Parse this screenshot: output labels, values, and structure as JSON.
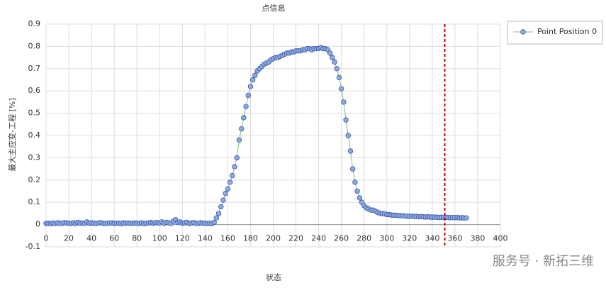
{
  "chart_data": {
    "type": "line",
    "title": "点信息",
    "x_label": "状态",
    "y_label": "最大主应变-工程 [%]",
    "x": [
      0,
      2,
      4,
      6,
      8,
      10,
      12,
      14,
      16,
      18,
      20,
      22,
      24,
      26,
      28,
      30,
      32,
      34,
      36,
      38,
      40,
      42,
      44,
      46,
      48,
      50,
      52,
      54,
      56,
      58,
      60,
      62,
      64,
      66,
      68,
      70,
      72,
      74,
      76,
      78,
      80,
      82,
      84,
      86,
      88,
      90,
      92,
      94,
      96,
      98,
      100,
      102,
      104,
      106,
      108,
      110,
      112,
      114,
      116,
      118,
      120,
      122,
      124,
      126,
      128,
      130,
      132,
      134,
      136,
      138,
      140,
      142,
      144,
      146,
      148,
      150,
      152,
      154,
      156,
      158,
      160,
      162,
      164,
      166,
      168,
      170,
      172,
      174,
      176,
      178,
      180,
      182,
      184,
      186,
      188,
      190,
      192,
      194,
      196,
      198,
      200,
      202,
      204,
      206,
      208,
      210,
      212,
      214,
      216,
      218,
      220,
      222,
      224,
      226,
      228,
      230,
      232,
      234,
      236,
      238,
      240,
      242,
      244,
      246,
      248,
      250,
      252,
      254,
      256,
      258,
      260,
      262,
      264,
      266,
      268,
      270,
      272,
      274,
      276,
      278,
      280,
      282,
      284,
      286,
      288,
      290,
      292,
      294,
      296,
      298,
      300,
      302,
      304,
      306,
      308,
      310,
      312,
      314,
      316,
      318,
      320,
      322,
      324,
      326,
      328,
      330,
      332,
      334,
      336,
      338,
      340,
      342,
      344,
      346,
      348,
      350,
      352,
      354,
      356,
      358,
      360,
      362,
      364,
      366,
      368,
      370
    ],
    "series": [
      {
        "name": "Point Position 0",
        "color": "#8fa8e0",
        "edge_color": "#3a5aa8",
        "line_color": "#7fbf7f",
        "values": [
          0.005,
          0.006,
          0.004,
          0.007,
          0.005,
          0.008,
          0.006,
          0.005,
          0.009,
          0.007,
          0.006,
          0.005,
          0.008,
          0.004,
          0.01,
          0.006,
          0.007,
          0.005,
          0.012,
          0.006,
          0.008,
          0.006,
          0.005,
          0.007,
          0.009,
          0.006,
          0.005,
          0.007,
          0.006,
          0.008,
          0.005,
          0.007,
          0.006,
          0.004,
          0.008,
          0.006,
          0.007,
          0.005,
          0.006,
          0.007,
          0.006,
          0.005,
          0.008,
          0.004,
          0.006,
          0.007,
          0.01,
          0.006,
          0.008,
          0.009,
          0.007,
          0.012,
          0.006,
          0.01,
          0.008,
          0.005,
          0.015,
          0.022,
          0.009,
          0.012,
          0.006,
          0.008,
          0.01,
          0.005,
          0.007,
          0.009,
          0.006,
          0.005,
          0.008,
          0.006,
          0.007,
          0.005,
          0.006,
          0.004,
          0.01,
          0.03,
          0.05,
          0.08,
          0.11,
          0.14,
          0.16,
          0.19,
          0.22,
          0.26,
          0.3,
          0.38,
          0.43,
          0.48,
          0.53,
          0.58,
          0.62,
          0.65,
          0.67,
          0.69,
          0.7,
          0.71,
          0.72,
          0.725,
          0.73,
          0.74,
          0.745,
          0.75,
          0.75,
          0.755,
          0.76,
          0.765,
          0.77,
          0.77,
          0.775,
          0.775,
          0.78,
          0.78,
          0.78,
          0.785,
          0.785,
          0.79,
          0.79,
          0.785,
          0.79,
          0.79,
          0.79,
          0.795,
          0.79,
          0.79,
          0.785,
          0.77,
          0.75,
          0.73,
          0.7,
          0.66,
          0.61,
          0.55,
          0.47,
          0.4,
          0.33,
          0.25,
          0.19,
          0.15,
          0.12,
          0.1,
          0.085,
          0.075,
          0.07,
          0.065,
          0.065,
          0.06,
          0.055,
          0.05,
          0.05,
          0.048,
          0.045,
          0.045,
          0.043,
          0.042,
          0.042,
          0.04,
          0.04,
          0.04,
          0.038,
          0.038,
          0.037,
          0.038,
          0.036,
          0.037,
          0.035,
          0.036,
          0.035,
          0.034,
          0.035,
          0.034,
          0.033,
          0.034,
          0.033,
          0.032,
          0.033,
          0.032,
          0.033,
          0.032,
          0.031,
          0.032,
          0.031,
          0.032,
          0.03,
          0.031,
          0.03,
          0.03
        ]
      }
    ],
    "xlim": [
      0,
      400
    ],
    "xticks": [
      0,
      20,
      40,
      60,
      80,
      100,
      120,
      140,
      160,
      180,
      200,
      220,
      240,
      260,
      280,
      300,
      320,
      340,
      360,
      380,
      400
    ],
    "ylim": [
      -0.1,
      0.9
    ],
    "yticks": [
      -0.1,
      0,
      0.1,
      0.2,
      0.3,
      0.4,
      0.5,
      0.6,
      0.7,
      0.8,
      0.9
    ],
    "grid": true,
    "legend": "right",
    "vline": {
      "x": 351,
      "color": "#c00000"
    },
    "watermark": "服务号 · 新拓三维"
  }
}
